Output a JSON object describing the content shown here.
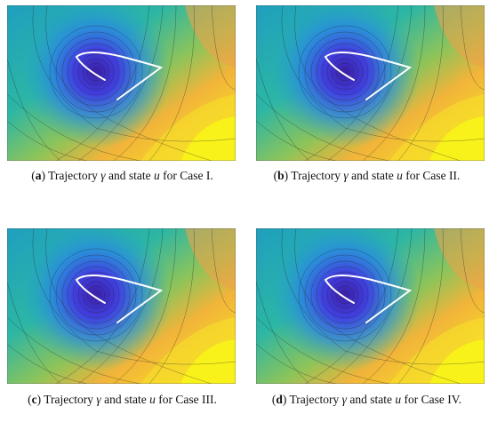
{
  "panels": [
    {
      "caption": [
        {
          "text": "(",
          "style": "normal"
        },
        {
          "text": "a",
          "style": "bold"
        },
        {
          "text": ") Trajectory ",
          "style": "normal"
        },
        {
          "text": "γ",
          "style": "italic"
        },
        {
          "text": " and state ",
          "style": "normal"
        },
        {
          "text": "u",
          "style": "italic"
        },
        {
          "text": " for Case I.",
          "style": "normal"
        }
      ]
    },
    {
      "caption": [
        {
          "text": "(",
          "style": "normal"
        },
        {
          "text": "b",
          "style": "bold"
        },
        {
          "text": ") Trajectory ",
          "style": "normal"
        },
        {
          "text": "γ",
          "style": "italic"
        },
        {
          "text": " and state ",
          "style": "normal"
        },
        {
          "text": "u",
          "style": "italic"
        },
        {
          "text": " for Case II.",
          "style": "normal"
        }
      ]
    },
    {
      "caption": [
        {
          "text": "(",
          "style": "normal"
        },
        {
          "text": "c",
          "style": "bold"
        },
        {
          "text": ") Trajectory ",
          "style": "normal"
        },
        {
          "text": "γ",
          "style": "italic"
        },
        {
          "text": " and state ",
          "style": "normal"
        },
        {
          "text": "u",
          "style": "italic"
        },
        {
          "text": " for Case III.",
          "style": "normal"
        }
      ]
    },
    {
      "caption": [
        {
          "text": "(",
          "style": "normal"
        },
        {
          "text": "d",
          "style": "bold"
        },
        {
          "text": ") Trajectory ",
          "style": "normal"
        },
        {
          "text": "γ",
          "style": "italic"
        },
        {
          "text": " and state ",
          "style": "normal"
        },
        {
          "text": "u",
          "style": "italic"
        },
        {
          "text": " for Case IV.",
          "style": "normal"
        }
      ]
    }
  ]
}
